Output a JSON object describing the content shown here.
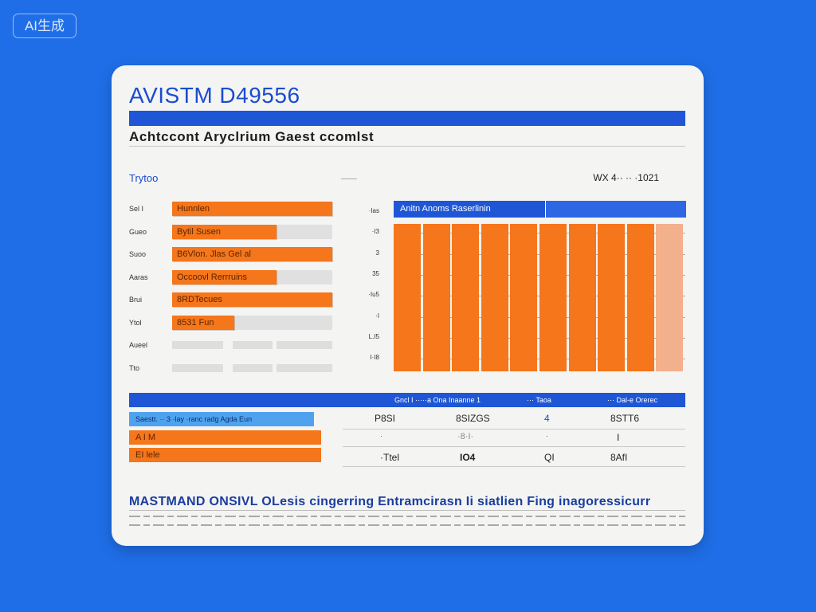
{
  "watermark": "AI生成",
  "card": {
    "title": "AVISTM D49556",
    "subtitle": "Achtccont Aryclrium Gaest ccomlst",
    "section_label": "Trytoo",
    "right_label": "WX 4·· ·· ·1021"
  },
  "left_rows": [
    {
      "label": "Sel I",
      "bar_text": "Hunnlen"
    },
    {
      "label": "Gueo",
      "bar_text": "Bytil Susen"
    },
    {
      "label": "Suoo",
      "bar_text": "B6Vlon. Jlas Gel al"
    },
    {
      "label": "Aaras",
      "bar_text": "Occoovl Rerrruins"
    },
    {
      "label": "Brui",
      "bar_text": "8RDTecues"
    },
    {
      "label": "Ytol",
      "bar_text": "8531 Fun"
    },
    {
      "label": "Aueel",
      "bar_text": ""
    },
    {
      "label": "Tto",
      "bar_text": ""
    }
  ],
  "colors": {
    "background": "#1f6ee8",
    "accent_blue": "#1f56d6",
    "bar_orange": "#f5761b"
  },
  "chart_data": [
    {
      "type": "bar",
      "orientation": "horizontal",
      "categories": [
        "Sel I",
        "Gueo",
        "Suoo",
        "Aaras",
        "Brui",
        "Ytol",
        "Aueel",
        "Tto"
      ],
      "values": [
        1.0,
        0.65,
        1.0,
        0.65,
        1.0,
        0.39,
        0,
        0
      ],
      "title": "",
      "xlabel": "",
      "ylabel": "",
      "grid": false
    },
    {
      "type": "bar",
      "title": "Anitn Anoms Raserlinin",
      "yticks": [
        "·Ias",
        "·I3",
        "3",
        "35",
        "·Iu5",
        "·I",
        "L.I5",
        "I·I8"
      ],
      "values": [
        100,
        100,
        100,
        100,
        100,
        100,
        100,
        100,
        100,
        100
      ],
      "ylim": [
        0,
        100
      ],
      "grid": true,
      "legend": "none"
    }
  ],
  "table": {
    "headers": [
      "Gncl I ·····a Ona Inaanne 1",
      "··· Taoa",
      "··· Dal-e Orerec"
    ],
    "rows": [
      {
        "label": "Saestt. ·· 3 ·lay ·ranc radg Agda Eun",
        "cells": [
          "P8SI",
          "8SIZGS",
          "4",
          "8STT6"
        ]
      },
      {
        "label": "A I M",
        "cells": [
          "·",
          "·8·I·",
          "·",
          "I"
        ]
      },
      {
        "label": "EI lele",
        "cells": [
          "·Ttel",
          "IO4",
          "QI",
          "8AfI"
        ]
      }
    ]
  },
  "footer": {
    "title": "MASTMAND ONSIVL OLesis cingerring Entramcirasn Ii siatlien Fing inagoressicurr"
  }
}
